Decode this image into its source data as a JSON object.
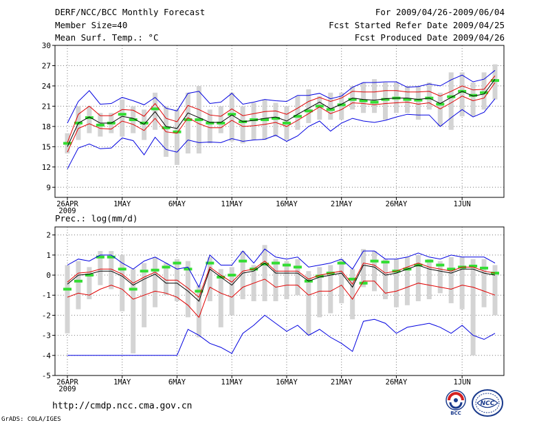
{
  "header": {
    "title": "DERF/NCC/BCC Monthly Forecast",
    "member_size": "Member Size=40",
    "variable_top": "Mean Surf. Temp.: °C",
    "period": "For 2009/04/26-2009/06/04",
    "fcst_started": "Fcst Started Refer Date 2009/04/25",
    "fcst_produced": "Fcst Produced Date 2009/04/26"
  },
  "footer": {
    "url": "http://cmdp.ncc.cma.gov.cn",
    "grads": "GrADS: COLA/IGES",
    "logo_bcc": "BCC",
    "logo_ncc": "NCC"
  },
  "chart_data": [
    {
      "type": "line",
      "title": "Mean Surf. Temp.: °C",
      "days": 40,
      "ylim": [
        7.5,
        30
      ],
      "yticks": [
        9,
        12,
        15,
        18,
        21,
        24,
        27,
        30
      ],
      "xticks": [
        {
          "day": 0,
          "label": "26APR",
          "sub": "2009"
        },
        {
          "day": 5,
          "label": "1MAY"
        },
        {
          "day": 10,
          "label": "6MAY"
        },
        {
          "day": 15,
          "label": "11MAY"
        },
        {
          "day": 20,
          "label": "16MAY"
        },
        {
          "day": 25,
          "label": "21MAY"
        },
        {
          "day": 30,
          "label": "26MAY"
        },
        {
          "day": 36,
          "label": "1JUN"
        }
      ],
      "mean": [
        15,
        18.5,
        19.4,
        18.5,
        18.5,
        19.5,
        19.2,
        18.3,
        20.2,
        18.0,
        17.7,
        20.0,
        19.3,
        18.6,
        18.6,
        19.7,
        18.7,
        18.9,
        19.2,
        19.4,
        18.8,
        19.8,
        20.7,
        21.6,
        20.6,
        21.3,
        22.2,
        22.0,
        21.9,
        22.1,
        22.2,
        22.2,
        22.0,
        22.2,
        21.4,
        22.3,
        23.2,
        22.5,
        22.8,
        25.0
      ],
      "upper_red": [
        15.6,
        19.8,
        21,
        19.6,
        19.6,
        20.5,
        20.4,
        19.5,
        21.4,
        19.2,
        18.7,
        21.1,
        20.5,
        19.7,
        19.5,
        20.6,
        19.6,
        19.9,
        20.2,
        20.3,
        19.8,
        20.7,
        21.7,
        22.3,
        21.7,
        22.2,
        23.2,
        23.1,
        23.1,
        23.3,
        23.3,
        23.1,
        23.1,
        23.2,
        22.5,
        23.2,
        24.0,
        23.4,
        23.5,
        25.5
      ],
      "lower_red": [
        14.2,
        17.7,
        18.4,
        17.7,
        17.6,
        18.8,
        18.3,
        17.4,
        19.2,
        17.2,
        17.0,
        19.3,
        18.4,
        17.8,
        17.8,
        18.9,
        18.0,
        18.1,
        18.3,
        18.6,
        18.0,
        18.9,
        19.9,
        20.9,
        19.9,
        20.5,
        21.5,
        21.4,
        21.2,
        21.4,
        21.5,
        21.6,
        21.3,
        21.5,
        20.6,
        21.5,
        22.5,
        21.8,
        22.2,
        24.5
      ],
      "upper_blue": [
        18.5,
        21.7,
        23.3,
        21.3,
        21.4,
        22.3,
        21.8,
        21.2,
        22.3,
        20.7,
        20.3,
        22.9,
        23.2,
        21.4,
        21.6,
        22.9,
        21.3,
        21.6,
        22.0,
        21.8,
        21.7,
        22.6,
        22.6,
        22.9,
        22.1,
        22.5,
        23.8,
        24.5,
        24.5,
        24.6,
        24.6,
        23.8,
        23.9,
        24.3,
        24.0,
        24.9,
        25.6,
        24.6,
        25.0,
        26.3
      ],
      "lower_blue": [
        11.7,
        14.8,
        15.4,
        14.7,
        14.8,
        16.3,
        15.9,
        13.8,
        16.4,
        14.6,
        14.2,
        16.0,
        15.6,
        15.7,
        15.6,
        16.2,
        15.8,
        16.0,
        16.1,
        16.7,
        15.8,
        16.6,
        18.0,
        18.8,
        17.3,
        18.5,
        19.2,
        18.8,
        18.6,
        18.9,
        19.4,
        19.8,
        19.7,
        19.7,
        18.0,
        19.3,
        20.5,
        19.4,
        20.1,
        22.1
      ],
      "obs_green": [
        15.5,
        18.5,
        19.3,
        18.2,
        18.5,
        19.8,
        19.0,
        18.5,
        20.6,
        17.8,
        17.2,
        19.0,
        19.0,
        18.5,
        18.5,
        19.8,
        18.7,
        19.0,
        19.0,
        19.2,
        18.5,
        19.5,
        20.3,
        21.0,
        20.5,
        21.2,
        22.0,
        21.8,
        21.6,
        22.0,
        22.2,
        22.0,
        21.9,
        22.2,
        21.3,
        22.4,
        23.2,
        22.6,
        23.0,
        24.8
      ],
      "bars": [
        [
          14,
          17
        ],
        [
          16,
          21
        ],
        [
          17,
          21
        ],
        [
          16.5,
          20
        ],
        [
          17,
          20
        ],
        [
          16.5,
          22
        ],
        [
          17,
          21
        ],
        [
          16,
          20.5
        ],
        [
          17.5,
          23
        ],
        [
          13.5,
          21
        ],
        [
          12.3,
          20.5
        ],
        [
          14,
          23
        ],
        [
          14,
          24
        ],
        [
          15.5,
          20.5
        ],
        [
          17,
          21
        ],
        [
          15.8,
          23
        ],
        [
          15.5,
          21
        ],
        [
          16,
          21.5
        ],
        [
          16,
          22
        ],
        [
          16.5,
          21.5
        ],
        [
          16,
          21
        ],
        [
          17.5,
          22.5
        ],
        [
          18.5,
          23.5
        ],
        [
          19,
          22.5
        ],
        [
          19,
          23
        ],
        [
          19,
          23
        ],
        [
          20.5,
          24
        ],
        [
          20,
          24.5
        ],
        [
          20,
          25
        ],
        [
          19,
          24.5
        ],
        [
          20,
          24.5
        ],
        [
          20,
          24
        ],
        [
          19,
          24
        ],
        [
          20.5,
          24.5
        ],
        [
          18,
          23
        ],
        [
          17.5,
          26
        ],
        [
          19.5,
          26
        ],
        [
          19.5,
          24.5
        ],
        [
          20.5,
          26
        ],
        [
          22,
          27.2
        ]
      ]
    },
    {
      "type": "line",
      "title": "Prec.: log(mm/d)",
      "days": 40,
      "ylim": [
        -5,
        2.4
      ],
      "yticks": [
        -5,
        -4,
        -3,
        -2,
        -1,
        0,
        1,
        2
      ],
      "xticks": [
        {
          "day": 0,
          "label": "26APR",
          "sub": "2009"
        },
        {
          "day": 5,
          "label": "1MAY"
        },
        {
          "day": 10,
          "label": "6MAY"
        },
        {
          "day": 15,
          "label": "11MAY"
        },
        {
          "day": 20,
          "label": "16MAY"
        },
        {
          "day": 25,
          "label": "21MAY"
        },
        {
          "day": 30,
          "label": "26MAY"
        },
        {
          "day": 36,
          "label": "1JUN"
        }
      ],
      "mean": [
        -0.45,
        0.0,
        0.05,
        0.2,
        0.2,
        -0.05,
        -0.5,
        -0.2,
        0.05,
        -0.4,
        -0.4,
        -0.8,
        -1.3,
        0.3,
        -0.1,
        -0.5,
        0.1,
        0.2,
        0.6,
        0.1,
        0.1,
        0.1,
        -0.3,
        -0.1,
        0.0,
        0.1,
        -0.6,
        0.5,
        0.4,
        0.0,
        0.1,
        0.3,
        0.5,
        0.3,
        0.2,
        0.1,
        0.3,
        0.3,
        0.1,
        0.0
      ],
      "upper_red": [
        -0.35,
        0.1,
        0.15,
        0.3,
        0.3,
        0.05,
        -0.4,
        -0.1,
        0.15,
        -0.25,
        -0.25,
        -0.65,
        -1.1,
        0.4,
        0.0,
        -0.35,
        0.2,
        0.3,
        0.7,
        0.2,
        0.2,
        0.2,
        -0.2,
        0.0,
        0.1,
        0.2,
        -0.45,
        0.6,
        0.5,
        0.1,
        0.2,
        0.4,
        0.6,
        0.4,
        0.3,
        0.2,
        0.4,
        0.4,
        0.2,
        0.1
      ],
      "lower_red": [
        -1.1,
        -0.9,
        -1.0,
        -0.7,
        -0.5,
        -0.7,
        -1.2,
        -1.0,
        -0.8,
        -0.9,
        -1.1,
        -1.5,
        -2.1,
        -0.6,
        -0.9,
        -1.1,
        -0.6,
        -0.4,
        -0.2,
        -0.6,
        -0.5,
        -0.5,
        -1.0,
        -0.8,
        -0.8,
        -0.5,
        -1.2,
        -0.3,
        -0.3,
        -0.9,
        -0.8,
        -0.6,
        -0.4,
        -0.5,
        -0.6,
        -0.7,
        -0.5,
        -0.6,
        -0.8,
        -1.0
      ],
      "upper_blue": [
        0.5,
        0.8,
        0.7,
        1.0,
        1.0,
        0.6,
        0.3,
        0.7,
        0.9,
        0.6,
        0.3,
        0.4,
        -0.6,
        1.0,
        0.5,
        0.5,
        1.2,
        0.6,
        1.3,
        0.9,
        0.8,
        0.9,
        0.4,
        0.5,
        0.6,
        0.8,
        0.3,
        1.2,
        1.2,
        0.8,
        0.8,
        0.9,
        1.1,
        0.9,
        0.8,
        1.0,
        0.9,
        0.9,
        0.9,
        0.6
      ],
      "lower_blue": [
        -4.0,
        -4.0,
        -4.0,
        -4.0,
        -4.0,
        -4.0,
        -4.0,
        -4.0,
        -4.0,
        -4.0,
        -4.0,
        -2.7,
        -3.0,
        -3.4,
        -3.6,
        -3.9,
        -2.9,
        -2.5,
        -2.0,
        -2.4,
        -2.8,
        -2.5,
        -3.0,
        -2.7,
        -3.1,
        -3.4,
        -3.8,
        -2.3,
        -2.2,
        -2.4,
        -2.9,
        -2.6,
        -2.5,
        -2.4,
        -2.6,
        -2.9,
        -2.5,
        -3.0,
        -3.2,
        -2.9
      ],
      "obs_green": [
        -0.7,
        -0.3,
        0.0,
        0.9,
        0.9,
        0.3,
        -0.7,
        0.2,
        0.25,
        0.4,
        0.6,
        0.3,
        -0.8,
        0.6,
        -0.1,
        0.0,
        0.7,
        0.3,
        0.55,
        0.6,
        0.5,
        0.4,
        -0.3,
        -0.05,
        0.1,
        0.6,
        -0.2,
        -0.4,
        0.7,
        0.65,
        0.2,
        0.3,
        0.5,
        0.7,
        0.5,
        0.3,
        0.4,
        0.45,
        0.35,
        0.1
      ],
      "bars": [
        [
          -2.9,
          0.5
        ],
        [
          -1.7,
          0.7
        ],
        [
          -1.2,
          0.4
        ],
        [
          -0.5,
          1.2
        ],
        [
          -0.7,
          1.2
        ],
        [
          -1.8,
          1.0
        ],
        [
          -3.9,
          0.3
        ],
        [
          -2.6,
          0.6
        ],
        [
          -1.6,
          0.9
        ],
        [
          -1.0,
          0.6
        ],
        [
          -1.3,
          0.8
        ],
        [
          -2.1,
          0.7
        ],
        [
          -3.1,
          -0.5
        ],
        [
          -1.3,
          0.9
        ],
        [
          -2.6,
          0.3
        ],
        [
          -2.0,
          0.4
        ],
        [
          -1.2,
          1.2
        ],
        [
          -1.3,
          0.5
        ],
        [
          -1.3,
          1.5
        ],
        [
          -1.3,
          0.8
        ],
        [
          -1.2,
          0.7
        ],
        [
          -1.0,
          0.8
        ],
        [
          -3.0,
          0.2
        ],
        [
          -2.1,
          0.4
        ],
        [
          -1.9,
          0.5
        ],
        [
          -1.4,
          0.8
        ],
        [
          -2.2,
          0.3
        ],
        [
          -0.6,
          1.3
        ],
        [
          -0.8,
          1.2
        ],
        [
          -1.2,
          0.8
        ],
        [
          -1.6,
          0.8
        ],
        [
          -1.5,
          0.9
        ],
        [
          -1.3,
          1.0
        ],
        [
          -1.2,
          0.8
        ],
        [
          -0.9,
          0.7
        ],
        [
          -1.4,
          0.9
        ],
        [
          -1.7,
          0.9
        ],
        [
          -4.0,
          0.8
        ],
        [
          -1.6,
          0.8
        ],
        [
          -2.0,
          0.5
        ]
      ]
    }
  ]
}
